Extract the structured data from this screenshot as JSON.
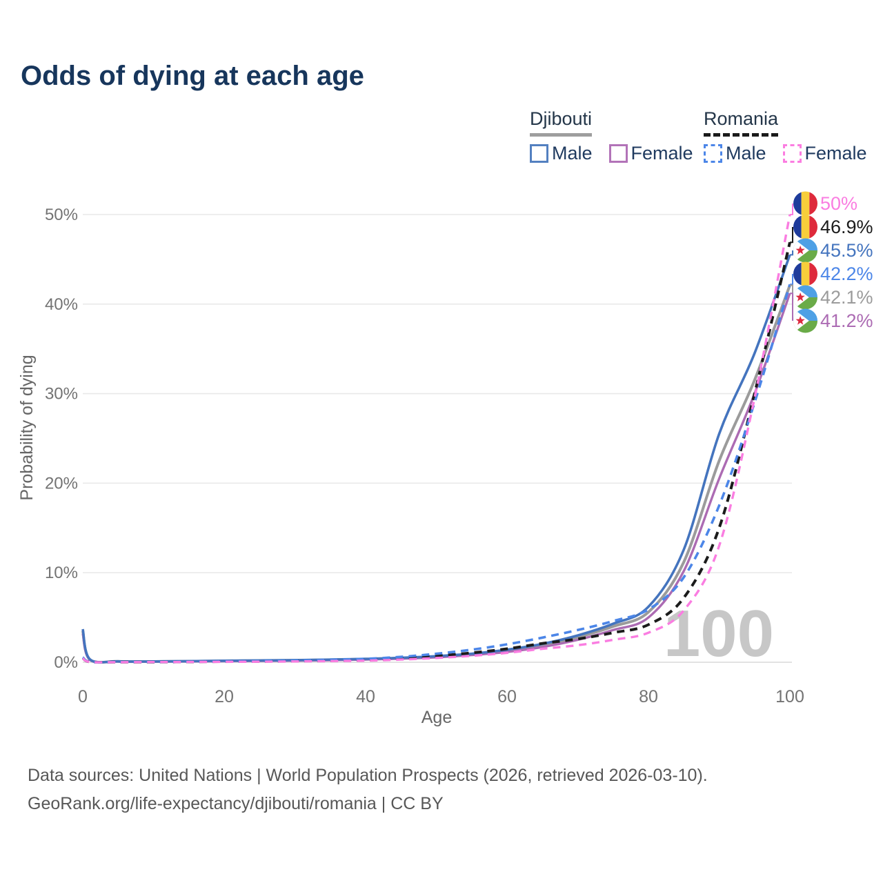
{
  "title": "Odds of dying at each age",
  "legend": {
    "groups": [
      {
        "country": "Djibouti",
        "underline_color": "#9E9E9E",
        "underline_dashed": false,
        "items": [
          {
            "label": "Male",
            "color": "#5380C0",
            "dashed": false
          },
          {
            "label": "Female",
            "color": "#B273B8",
            "dashed": false
          }
        ]
      },
      {
        "country": "Romania",
        "underline_color": "#1B1B1B",
        "underline_dashed": true,
        "items": [
          {
            "label": "Male",
            "color": "#4C86E8",
            "dashed": true
          },
          {
            "label": "Female",
            "color": "#FB7DE1",
            "dashed": true
          }
        ]
      }
    ]
  },
  "chart_data": {
    "type": "line",
    "title": "Odds of dying at each age",
    "xlabel": "Age",
    "ylabel": "Probability of dying",
    "xlim": [
      0,
      100
    ],
    "ylim": [
      0,
      50
    ],
    "xticks": [
      0,
      20,
      40,
      60,
      80,
      100
    ],
    "yticks": [
      {
        "v": 0,
        "label": "0%"
      },
      {
        "v": 10,
        "label": "10%"
      },
      {
        "v": 20,
        "label": "20%"
      },
      {
        "v": 30,
        "label": "30%"
      },
      {
        "v": 40,
        "label": "40%"
      },
      {
        "v": 50,
        "label": "50%"
      }
    ],
    "grid": true,
    "age_counter": "100",
    "x": [
      0,
      1,
      5,
      10,
      15,
      20,
      25,
      30,
      35,
      40,
      45,
      50,
      55,
      60,
      65,
      70,
      75,
      80,
      85,
      90,
      95,
      100
    ],
    "series": [
      {
        "id": "djibouti_both",
        "name": "Djibouti",
        "country": "Djibouti",
        "sex": "Both",
        "color": "#9B9B9B",
        "dashed": false,
        "width": 4,
        "values": [
          3.5,
          0.3,
          0.09,
          0.08,
          0.11,
          0.15,
          0.18,
          0.21,
          0.27,
          0.34,
          0.45,
          0.62,
          0.88,
          1.3,
          1.9,
          2.8,
          4.0,
          5.6,
          11.2,
          22.5,
          31.5,
          42.1
        ]
      },
      {
        "id": "djibouti_female",
        "name": "Djibouti Female",
        "country": "Djibouti",
        "sex": "Female",
        "color": "#AC6BB3",
        "dashed": false,
        "width": 3.4,
        "values": [
          3.2,
          0.28,
          0.08,
          0.07,
          0.09,
          0.12,
          0.15,
          0.18,
          0.23,
          0.3,
          0.4,
          0.55,
          0.8,
          1.15,
          1.7,
          2.5,
          3.6,
          5.0,
          10.2,
          20.5,
          30.0,
          41.2
        ]
      },
      {
        "id": "djibouti_male",
        "name": "Djibouti Male",
        "country": "Djibouti",
        "sex": "Male",
        "color": "#4474BE",
        "dashed": false,
        "width": 3.6,
        "values": [
          3.7,
          0.33,
          0.1,
          0.09,
          0.12,
          0.17,
          0.2,
          0.24,
          0.3,
          0.38,
          0.5,
          0.68,
          0.95,
          1.4,
          2.05,
          3.0,
          4.3,
          6.2,
          12.6,
          25.5,
          34.5,
          45.5
        ]
      },
      {
        "id": "romania_both",
        "name": "Romania",
        "country": "Romania",
        "sex": "Both",
        "color": "#1B1B1B",
        "dashed": true,
        "width": 4,
        "values": [
          0.5,
          0.04,
          0.02,
          0.02,
          0.05,
          0.08,
          0.1,
          0.14,
          0.2,
          0.28,
          0.45,
          0.7,
          1.05,
          1.5,
          2.1,
          2.6,
          3.3,
          4.2,
          7.2,
          15.0,
          30.0,
          46.9
        ]
      },
      {
        "id": "romania_male",
        "name": "Romania Male",
        "country": "Romania",
        "sex": "Male",
        "color": "#4C86E8",
        "dashed": true,
        "width": 3.6,
        "values": [
          0.55,
          0.04,
          0.02,
          0.03,
          0.06,
          0.1,
          0.13,
          0.18,
          0.26,
          0.38,
          0.6,
          0.95,
          1.4,
          2.0,
          2.75,
          3.6,
          4.6,
          5.9,
          9.5,
          17.5,
          29.0,
          42.2
        ]
      },
      {
        "id": "romania_female",
        "name": "Romania Female",
        "country": "Romania",
        "sex": "Female",
        "color": "#FA7DE1",
        "dashed": true,
        "width": 3.4,
        "values": [
          0.45,
          0.03,
          0.01,
          0.02,
          0.03,
          0.05,
          0.06,
          0.09,
          0.13,
          0.18,
          0.3,
          0.48,
          0.72,
          1.05,
          1.5,
          1.9,
          2.5,
          3.3,
          5.8,
          13.0,
          29.5,
          50.0
        ]
      }
    ],
    "end_labels": [
      {
        "series": "romania_female",
        "value": "50%",
        "flag": "romania"
      },
      {
        "series": "romania_both",
        "value": "46.9%",
        "flag": "romania"
      },
      {
        "series": "djibouti_male",
        "value": "45.5%",
        "flag": "djibouti"
      },
      {
        "series": "romania_male",
        "value": "42.2%",
        "flag": "romania"
      },
      {
        "series": "djibouti_both",
        "value": "42.1%",
        "flag": "djibouti"
      },
      {
        "series": "djibouti_female",
        "value": "41.2%",
        "flag": "djibouti"
      }
    ],
    "flag_colors": {
      "romania": {
        "blue": "#1E3B9B",
        "yellow": "#F7CE3B",
        "red": "#DE2A3B"
      },
      "djibouti": {
        "blue": "#4EA0E5",
        "green": "#6AAB48",
        "white": "#FFFFFF",
        "star": "#DC2C40"
      }
    }
  },
  "style_colors": {
    "grid": "#E9E9E9",
    "zero_line": "#D9D9D9",
    "tick_text": "#737373",
    "axis_title": "#666666",
    "watermark": "#C7C7C7"
  },
  "footer": {
    "line1": "Data sources: United Nations | World Population Prospects (2026, retrieved 2026-03-10).",
    "line2": "GeoRank.org/life-expectancy/djibouti/romania | CC BY"
  }
}
